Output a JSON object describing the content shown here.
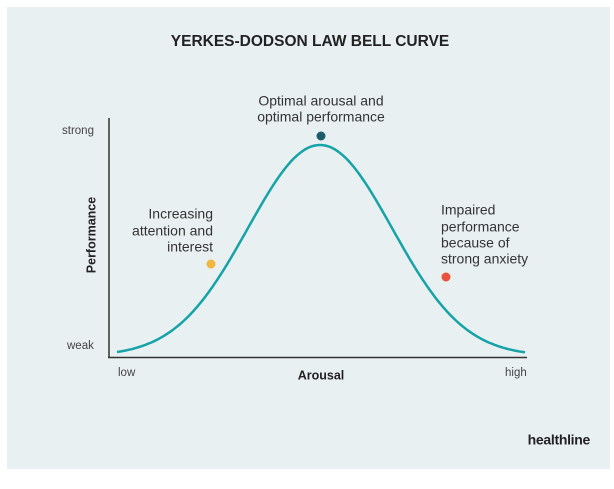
{
  "title": "YERKES-DODSON LAW BELL CURVE",
  "y_axis": {
    "label": "Performance",
    "top_label": "strong",
    "bottom_label": "weak"
  },
  "x_axis": {
    "label": "Arousal",
    "left_label": "low",
    "right_label": "high"
  },
  "annotations": [
    {
      "lines": [
        "Increasing",
        "attention and",
        "interest"
      ],
      "color": "#f2b53d"
    },
    {
      "lines": [
        "Optimal arousal and",
        "optimal performance"
      ],
      "color": "#1d5c6b"
    },
    {
      "lines": [
        "Impaired",
        "performance",
        "because of",
        "strong anxiety"
      ],
      "color": "#ea5139"
    }
  ],
  "curve_color": "#15a3a8",
  "brand": "healthline"
}
